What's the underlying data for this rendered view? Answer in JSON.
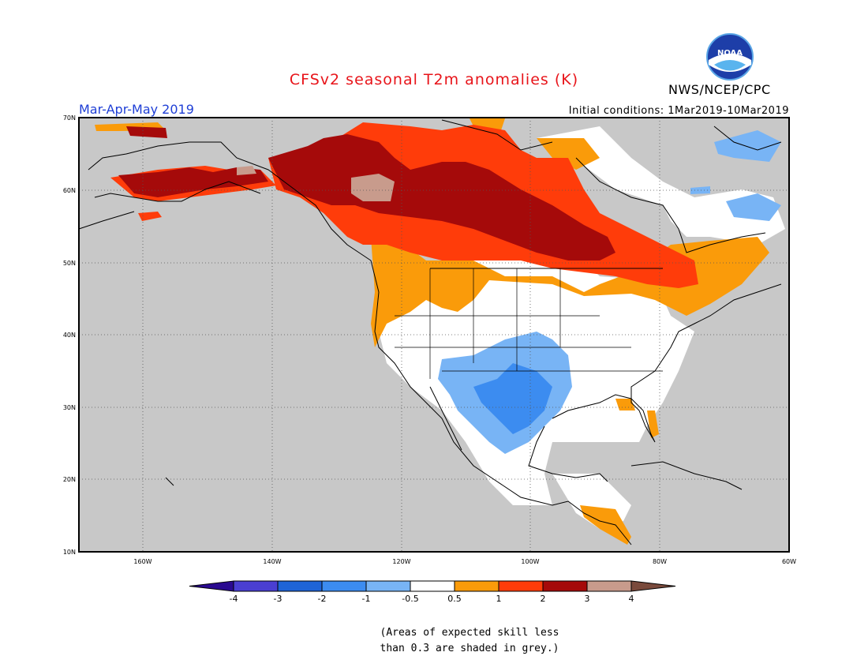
{
  "header": {
    "title": "CFSv2 seasonal T2m anomalies (K)",
    "period": "Mar-Apr-May 2019",
    "initial_conditions": "Initial conditions: 1Mar2019-10Mar2019",
    "agency": "NWS/NCEP/CPC",
    "logo_text": "NOAA"
  },
  "map": {
    "lat_labels": [
      "70N",
      "60N",
      "50N",
      "40N",
      "30N",
      "20N",
      "10N"
    ],
    "lon_labels": [
      "160W",
      "140W",
      "120W",
      "100W",
      "80W",
      "60W"
    ],
    "land_mask_color": "#c8c8c8"
  },
  "colorbar": {
    "labels": [
      "-4",
      "-3",
      "-2",
      "-1",
      "-0.5",
      "0.5",
      "1",
      "2",
      "3",
      "4"
    ],
    "colors": [
      "#2a0a90",
      "#4a3fd2",
      "#1e64d7",
      "#3c8cf0",
      "#78b4f5",
      "#ffffff",
      "#fa9b0a",
      "#ff3c0a",
      "#a50a0a",
      "#c89b8c",
      "#7a4a3c"
    ]
  },
  "footnote": {
    "line1": "(Areas of expected skill less",
    "line2": "than 0.3 are shaded in grey.)"
  }
}
